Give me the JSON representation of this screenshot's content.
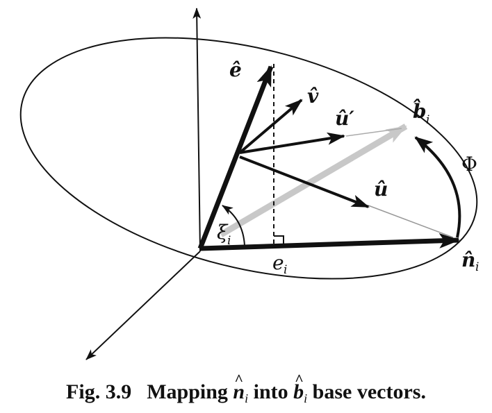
{
  "figure": {
    "caption_number": "Fig. 3.9",
    "caption_pre": "Mapping",
    "caption_mid": "into",
    "caption_post": "base vectors.",
    "caption_sym1": "n",
    "caption_sym2": "b",
    "caption_sub": "i"
  },
  "labels": {
    "e_hat": "ê",
    "v_hat": "v̂",
    "u_prime": "û′",
    "b_hat": "b̂",
    "b_sub": "i",
    "phi": "Φ",
    "u_hat": "û",
    "n_hat": "n̂",
    "n_sub": "i",
    "xi": "ξ",
    "xi_sub": "i",
    "e_base": "e",
    "e_sub": "i"
  },
  "colors": {
    "ink": "#111111",
    "gray_arrow": "#c8c8c8",
    "thin_gray": "#999999"
  }
}
